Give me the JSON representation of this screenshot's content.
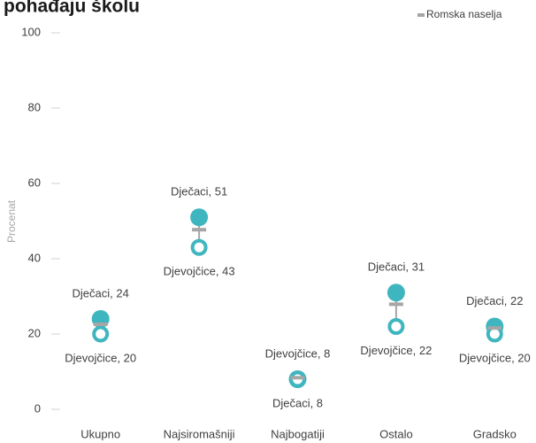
{
  "chart_data": {
    "type": "dot",
    "title": "pohađaju školu",
    "y_label": "Procenat",
    "categories": [
      "Ukupno",
      "Najsiromašniji",
      "Najbogatiji",
      "Ostalo",
      "Gradsko"
    ],
    "series": [
      {
        "color": "#3fb6bf",
        "marker": "filled",
        "values": [
          24,
          51,
          8,
          31,
          22
        ],
        "value_labels": [
          "Dječaci, 24",
          "Dječaci, 51",
          "Dječaci, 8",
          "Dječaci, 31",
          "Dječaci, 22"
        ]
      },
      {
        "color": "#3fb6bf",
        "marker": "hollow",
        "values": [
          20,
          43,
          8,
          22,
          20
        ],
        "value_labels": [
          "Djevojčice, 20",
          "Djevojčice, 43",
          "Djevojčice, 8",
          "Djevojčice, 22",
          "Djevojčice, 20"
        ]
      },
      {
        "name": "Romska naselja",
        "color": "#a6a6a6",
        "marker": "dash",
        "values": [
          22.6,
          47.7,
          8.4,
          27.9,
          21.6
        ]
      }
    ],
    "ylim": [
      0,
      100
    ],
    "yticks": [
      0,
      20,
      40,
      60,
      80,
      100
    ],
    "legend": "top-right"
  }
}
